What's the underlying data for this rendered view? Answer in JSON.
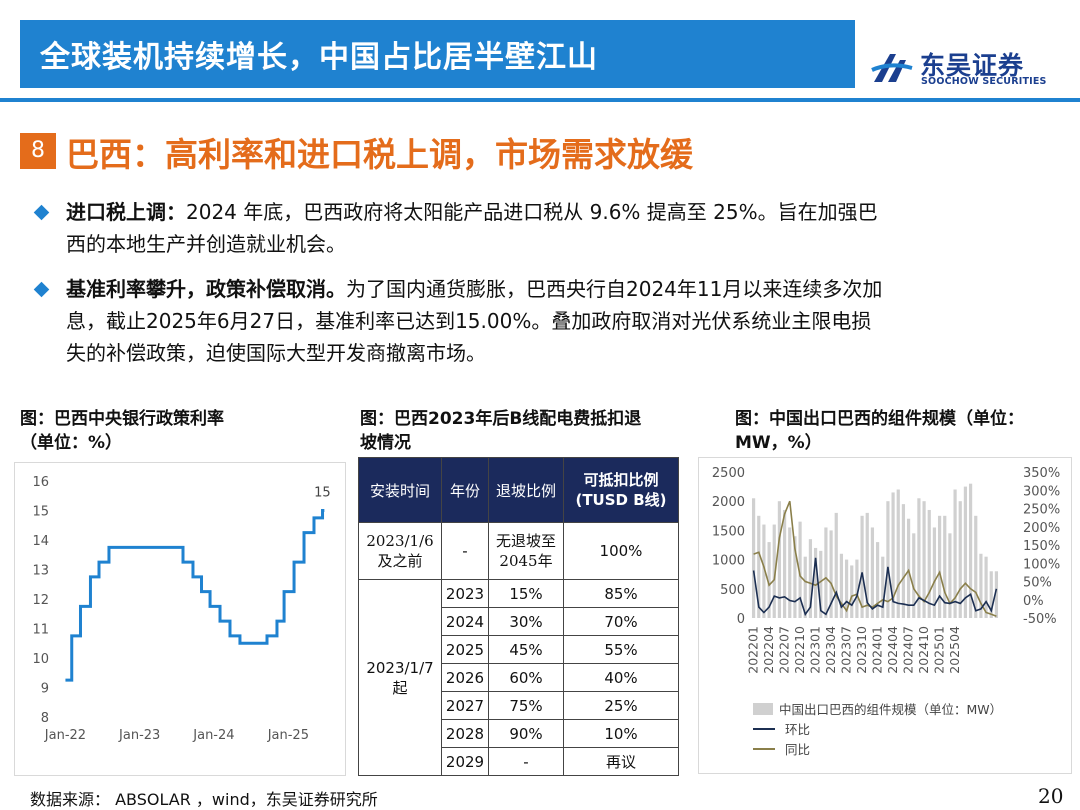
{
  "header": {
    "title": "全球装机持续增长，中国占比居半壁江山",
    "logo_cn": "东吴证券",
    "logo_en": "SOOCHOW SECURITIES"
  },
  "section": {
    "number": "8",
    "title": "巴西：高利率和进口税上调，市场需求放缓"
  },
  "bullets": [
    {
      "bold": "进口税上调：",
      "line1": "2024 年底，巴西政府将太阳能产品进口税从 9.6% 提高至 25%。旨在加强巴",
      "line2": "西的本地生产并创造就业机会。"
    },
    {
      "bold": "基准利率攀升，政策补偿取消。",
      "line1": "为了国内通货膨胀，巴西央行自2024年11月以来连续多次加",
      "line2": "息，截止2025年6月27日，基准利率已达到15.00%。叠加政府取消对光伏系统业主限电损",
      "line3": "失的补偿政策，迫使国际大型开发商撤离市场。"
    }
  ],
  "captions": {
    "left_1": "图：巴西中央银行政策利率",
    "left_2": "（单位：%）",
    "mid_1": "图：巴西2023年后B线配电费抵扣退",
    "mid_2": "坡情况",
    "right_1": "图：中国出口巴西的组件规模（单位：",
    "right_2": "MW，%）"
  },
  "charts": [
    {
      "type": "line",
      "title": "",
      "x_labels": [
        "Jan-22",
        "Jan-23",
        "Jan-24",
        "Jan-25"
      ],
      "y_ticks": [
        8,
        9,
        10,
        11,
        12,
        13,
        14,
        15,
        16
      ],
      "ylim": [
        8,
        16
      ],
      "line_color": "#1f82d0",
      "end_label": "15",
      "series": [
        {
          "x": [
            "2022-01-01",
            "2022-02-01",
            "2022-03-16",
            "2022-05-04",
            "2022-06-15",
            "2022-08-03",
            "2023-08-02",
            "2023-09-20",
            "2023-11-01",
            "2023-12-13",
            "2024-01-31",
            "2024-03-20",
            "2024-05-08",
            "2024-09-18",
            "2024-11-06",
            "2024-12-11",
            "2025-01-29",
            "2025-03-19",
            "2025-05-07",
            "2025-06-18",
            "2025-06-27"
          ],
          "y": [
            9.25,
            10.75,
            11.75,
            12.75,
            13.25,
            13.75,
            13.25,
            12.75,
            12.25,
            11.75,
            11.25,
            10.75,
            10.5,
            10.75,
            11.25,
            12.25,
            13.25,
            14.25,
            14.75,
            15.0,
            15.0
          ]
        }
      ]
    },
    {
      "type": "bar+line",
      "title": "",
      "x_labels": [
        "202201",
        "202204",
        "202207",
        "202210",
        "202301",
        "202304",
        "202307",
        "202310",
        "202401",
        "202404",
        "202407",
        "202410",
        "202501",
        "202504"
      ],
      "y_left_ticks": [
        0,
        500,
        1000,
        1500,
        2000,
        2500
      ],
      "y_right_ticks": [
        "-50%",
        "0%",
        "50%",
        "100%",
        "150%",
        "200%",
        "250%",
        "300%",
        "350%"
      ],
      "ylim_left": [
        0,
        2500
      ],
      "ylim_right": [
        -50,
        350
      ],
      "legend": {
        "bar": "中国出口巴西的组件规模（单位：MW）",
        "mom": "环比",
        "yoy": "同比"
      },
      "colors": {
        "bar": "#d0d0d0",
        "mom": "#1c2f52",
        "yoy": "#8a7f4a"
      },
      "series": [
        {
          "name": "中国出口巴西的组件规模（单位：MW）",
          "values": [
            2050,
            1750,
            1600,
            1300,
            1600,
            2000,
            1850,
            1550,
            1400,
            1650,
            1050,
            1350,
            1200,
            1150,
            1550,
            1500,
            1800,
            1100,
            1000,
            900,
            1000,
            1750,
            1800,
            1550,
            1300,
            1050,
            2000,
            2150,
            2200,
            1950,
            1700,
            1450,
            2050,
            2000,
            1850,
            1550,
            1750,
            1750,
            1450,
            2200,
            2000,
            2250,
            2300,
            1750,
            1100,
            1050,
            800,
            800
          ]
        },
        {
          "name": "环比",
          "values": [
            80,
            -20,
            -35,
            -20,
            10,
            5,
            8,
            -2,
            -5,
            5,
            -40,
            -20,
            115,
            -30,
            -40,
            -10,
            20,
            -20,
            -5,
            -15,
            10,
            75,
            -8,
            -25,
            -15,
            -20,
            90,
            -5,
            -10,
            -12,
            -15,
            -15,
            5,
            -2,
            -10,
            -15,
            10,
            -8,
            -10,
            -5,
            -10,
            5,
            15,
            -30,
            -25,
            -5,
            -30,
            30
          ]
        },
        {
          "name": "同比",
          "values": [
            125,
            130,
            90,
            40,
            55,
            170,
            235,
            270,
            140,
            65,
            50,
            45,
            40,
            50,
            60,
            45,
            10,
            -10,
            -30,
            10,
            15,
            -20,
            -15,
            -20,
            -10,
            0,
            -5,
            5,
            40,
            60,
            80,
            30,
            10,
            -5,
            20,
            50,
            75,
            20,
            -10,
            5,
            30,
            45,
            30,
            20,
            -10,
            -35,
            -40,
            -45
          ]
        }
      ]
    }
  ],
  "table": {
    "headers": [
      "安装时间",
      "年份",
      "退坡比例",
      "可抵扣比例",
      "(TUSD B线)"
    ],
    "row_first": {
      "time_1": "2023/1/6",
      "time_2": "及之前",
      "year": "-",
      "ratio_1": "无退坡至",
      "ratio_2": "2045年",
      "deduct": "100%"
    },
    "group_label_1": "2023/1/7",
    "group_label_2": "起",
    "rows": [
      {
        "year": "2023",
        "ratio": "15%",
        "deduct": "85%"
      },
      {
        "year": "2024",
        "ratio": "30%",
        "deduct": "70%"
      },
      {
        "year": "2025",
        "ratio": "45%",
        "deduct": "55%"
      },
      {
        "year": "2026",
        "ratio": "60%",
        "deduct": "40%"
      },
      {
        "year": "2027",
        "ratio": "75%",
        "deduct": "25%"
      },
      {
        "year": "2028",
        "ratio": "90%",
        "deduct": "10%"
      },
      {
        "year": "2029",
        "ratio": "-",
        "deduct": "再议"
      }
    ]
  },
  "footer": {
    "source": "数据来源： ABSOLAR ，wind，东吴证券研究所",
    "page": "20"
  }
}
